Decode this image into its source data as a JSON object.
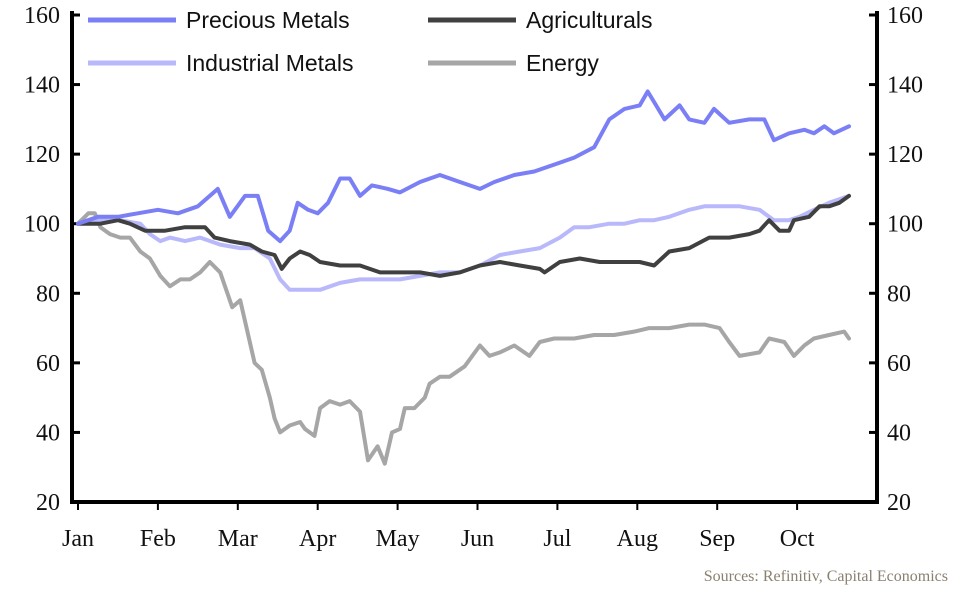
{
  "chart_data": {
    "type": "line",
    "title": "",
    "xlabel": "",
    "ylabel": "",
    "x_unit": "months since start of Jan",
    "xlim": [
      -0.1,
      9.75
    ],
    "ylim": [
      20,
      160
    ],
    "yticks": [
      20,
      40,
      60,
      80,
      100,
      120,
      140,
      160
    ],
    "xtick_labels": [
      "Jan",
      "Feb",
      "Mar",
      "Apr",
      "May",
      "Jun",
      "Jul",
      "Aug",
      "Sep",
      "Oct"
    ],
    "grid": false,
    "legend_position": "top-left",
    "source": "Sources: Refinitiv, Capital Economics",
    "series": [
      {
        "name": "Precious Metals",
        "color": "#7b7ff5",
        "points": [
          [
            0,
            100
          ],
          [
            0.25,
            102
          ],
          [
            0.5,
            102
          ],
          [
            0.75,
            103
          ],
          [
            1.0,
            104
          ],
          [
            1.25,
            103
          ],
          [
            1.5,
            105
          ],
          [
            1.75,
            110
          ],
          [
            1.9,
            102
          ],
          [
            2.09,
            108
          ],
          [
            2.25,
            108
          ],
          [
            2.38,
            98
          ],
          [
            2.53,
            95
          ],
          [
            2.65,
            98
          ],
          [
            2.75,
            106
          ],
          [
            2.88,
            104
          ],
          [
            3.0,
            103
          ],
          [
            3.13,
            106
          ],
          [
            3.28,
            113
          ],
          [
            3.4,
            113
          ],
          [
            3.53,
            108
          ],
          [
            3.68,
            111
          ],
          [
            3.88,
            110
          ],
          [
            4.03,
            109
          ],
          [
            4.28,
            112
          ],
          [
            4.53,
            114
          ],
          [
            4.78,
            112
          ],
          [
            5.03,
            110
          ],
          [
            5.21,
            112
          ],
          [
            5.46,
            114
          ],
          [
            5.71,
            115
          ],
          [
            5.96,
            117
          ],
          [
            6.21,
            119
          ],
          [
            6.46,
            122
          ],
          [
            6.65,
            130
          ],
          [
            6.84,
            133
          ],
          [
            7.03,
            134
          ],
          [
            7.13,
            138
          ],
          [
            7.21,
            135
          ],
          [
            7.34,
            130
          ],
          [
            7.53,
            134
          ],
          [
            7.65,
            130
          ],
          [
            7.84,
            129
          ],
          [
            7.96,
            133
          ],
          [
            8.15,
            129
          ],
          [
            8.4,
            130
          ],
          [
            8.59,
            130
          ],
          [
            8.71,
            124
          ],
          [
            8.9,
            126
          ],
          [
            9.09,
            127
          ],
          [
            9.21,
            126
          ],
          [
            9.34,
            128
          ],
          [
            9.46,
            126
          ],
          [
            9.65,
            128
          ]
        ]
      },
      {
        "name": "Agriculturals",
        "color": "#404040",
        "points": [
          [
            0,
            100
          ],
          [
            0.28,
            100
          ],
          [
            0.5,
            101
          ],
          [
            0.65,
            100
          ],
          [
            0.84,
            98
          ],
          [
            1.09,
            98
          ],
          [
            1.34,
            99
          ],
          [
            1.59,
            99
          ],
          [
            1.71,
            96
          ],
          [
            1.9,
            95
          ],
          [
            2.15,
            94
          ],
          [
            2.3,
            92
          ],
          [
            2.46,
            91
          ],
          [
            2.55,
            87
          ],
          [
            2.65,
            90
          ],
          [
            2.78,
            92
          ],
          [
            2.9,
            91
          ],
          [
            3.03,
            89
          ],
          [
            3.28,
            88
          ],
          [
            3.53,
            88
          ],
          [
            3.78,
            86
          ],
          [
            4.03,
            86
          ],
          [
            4.28,
            86
          ],
          [
            4.53,
            85
          ],
          [
            4.78,
            86
          ],
          [
            5.03,
            88
          ],
          [
            5.28,
            89
          ],
          [
            5.53,
            88
          ],
          [
            5.78,
            87
          ],
          [
            5.84,
            86
          ],
          [
            6.03,
            89
          ],
          [
            6.28,
            90
          ],
          [
            6.53,
            89
          ],
          [
            6.78,
            89
          ],
          [
            7.03,
            89
          ],
          [
            7.21,
            88
          ],
          [
            7.4,
            92
          ],
          [
            7.65,
            93
          ],
          [
            7.9,
            96
          ],
          [
            8.15,
            96
          ],
          [
            8.4,
            97
          ],
          [
            8.53,
            98
          ],
          [
            8.65,
            101
          ],
          [
            8.78,
            98
          ],
          [
            8.9,
            98
          ],
          [
            8.96,
            101
          ],
          [
            9.15,
            102
          ],
          [
            9.28,
            105
          ],
          [
            9.4,
            105
          ],
          [
            9.53,
            106
          ],
          [
            9.65,
            108
          ]
        ]
      },
      {
        "name": "Industrial Metals",
        "color": "#b8b8fb",
        "points": [
          [
            0,
            100
          ],
          [
            0.28,
            101
          ],
          [
            0.53,
            101
          ],
          [
            0.78,
            100
          ],
          [
            0.9,
            97
          ],
          [
            1.03,
            95
          ],
          [
            1.15,
            96
          ],
          [
            1.34,
            95
          ],
          [
            1.53,
            96
          ],
          [
            1.78,
            94
          ],
          [
            2.03,
            93
          ],
          [
            2.21,
            93
          ],
          [
            2.4,
            90
          ],
          [
            2.53,
            84
          ],
          [
            2.65,
            81
          ],
          [
            2.78,
            81
          ],
          [
            3.03,
            81
          ],
          [
            3.28,
            83
          ],
          [
            3.53,
            84
          ],
          [
            3.78,
            84
          ],
          [
            4.03,
            84
          ],
          [
            4.28,
            85
          ],
          [
            4.53,
            86
          ],
          [
            4.78,
            86
          ],
          [
            5.03,
            88
          ],
          [
            5.28,
            91
          ],
          [
            5.53,
            92
          ],
          [
            5.78,
            93
          ],
          [
            6.03,
            96
          ],
          [
            6.21,
            99
          ],
          [
            6.4,
            99
          ],
          [
            6.65,
            100
          ],
          [
            6.84,
            100
          ],
          [
            7.03,
            101
          ],
          [
            7.21,
            101
          ],
          [
            7.4,
            102
          ],
          [
            7.65,
            104
          ],
          [
            7.84,
            105
          ],
          [
            8.03,
            105
          ],
          [
            8.28,
            105
          ],
          [
            8.53,
            104
          ],
          [
            8.71,
            101
          ],
          [
            8.9,
            101
          ],
          [
            9.03,
            102
          ],
          [
            9.21,
            104
          ],
          [
            9.4,
            106
          ],
          [
            9.65,
            108
          ]
        ]
      },
      {
        "name": "Energy",
        "color": "#a6a6a6",
        "points": [
          [
            0,
            100
          ],
          [
            0.13,
            103
          ],
          [
            0.21,
            103
          ],
          [
            0.28,
            99
          ],
          [
            0.4,
            97
          ],
          [
            0.53,
            96
          ],
          [
            0.65,
            96
          ],
          [
            0.78,
            92
          ],
          [
            0.9,
            90
          ],
          [
            1.03,
            85
          ],
          [
            1.15,
            82
          ],
          [
            1.28,
            84
          ],
          [
            1.4,
            84
          ],
          [
            1.53,
            86
          ],
          [
            1.65,
            89
          ],
          [
            1.78,
            86
          ],
          [
            1.93,
            76
          ],
          [
            2.03,
            78
          ],
          [
            2.13,
            68
          ],
          [
            2.21,
            60
          ],
          [
            2.3,
            58
          ],
          [
            2.4,
            50
          ],
          [
            2.46,
            44
          ],
          [
            2.53,
            40
          ],
          [
            2.65,
            42
          ],
          [
            2.78,
            43
          ],
          [
            2.84,
            41
          ],
          [
            2.96,
            39
          ],
          [
            3.03,
            47
          ],
          [
            3.15,
            49
          ],
          [
            3.28,
            48
          ],
          [
            3.4,
            49
          ],
          [
            3.53,
            46
          ],
          [
            3.63,
            32
          ],
          [
            3.75,
            36
          ],
          [
            3.84,
            31
          ],
          [
            3.93,
            40
          ],
          [
            4.03,
            41
          ],
          [
            4.09,
            47
          ],
          [
            4.21,
            47
          ],
          [
            4.34,
            50
          ],
          [
            4.4,
            54
          ],
          [
            4.53,
            56
          ],
          [
            4.65,
            56
          ],
          [
            4.84,
            59
          ],
          [
            5.03,
            65
          ],
          [
            5.15,
            62
          ],
          [
            5.28,
            63
          ],
          [
            5.46,
            65
          ],
          [
            5.65,
            62
          ],
          [
            5.78,
            66
          ],
          [
            5.96,
            67
          ],
          [
            6.21,
            67
          ],
          [
            6.46,
            68
          ],
          [
            6.71,
            68
          ],
          [
            6.96,
            69
          ],
          [
            7.15,
            70
          ],
          [
            7.4,
            70
          ],
          [
            7.65,
            71
          ],
          [
            7.84,
            71
          ],
          [
            8.03,
            70
          ],
          [
            8.15,
            66
          ],
          [
            8.28,
            62
          ],
          [
            8.53,
            63
          ],
          [
            8.65,
            67
          ],
          [
            8.84,
            66
          ],
          [
            8.96,
            62
          ],
          [
            9.09,
            65
          ],
          [
            9.21,
            67
          ],
          [
            9.4,
            68
          ],
          [
            9.59,
            69
          ],
          [
            9.65,
            67
          ]
        ]
      }
    ]
  }
}
